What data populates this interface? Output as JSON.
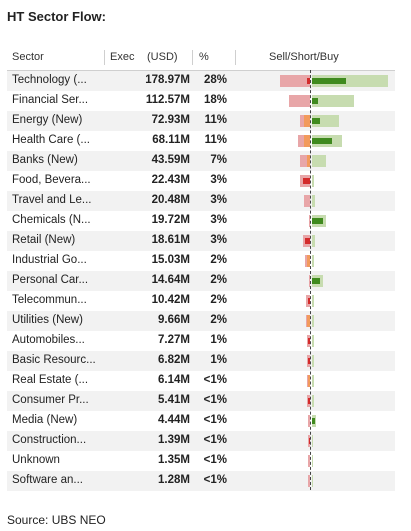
{
  "title": "HT Sector Flow:",
  "source": "Source: UBS NEO",
  "headers": {
    "sector": "Sector",
    "exec": "Exec",
    "usd": "(USD)",
    "pct": "%",
    "chart": "Sell/Short/Buy"
  },
  "colors": {
    "sell": "#e8a6a8",
    "sell_dark": "#d32b2b",
    "short": "#f29a5c",
    "buy": "#c7dcb0",
    "buy_dark": "#3f8a1e"
  },
  "rows": [
    {
      "sector": "Technology (...",
      "exec": "178.97M",
      "pct": "28%",
      "sell": 0.58,
      "sell_dark": 0.06,
      "short": 0.0,
      "buy": 1.0,
      "buy_dark": 0.45
    },
    {
      "sector": "Financial Ser...",
      "exec": "112.57M",
      "pct": "18%",
      "sell": 0.4,
      "sell_dark": 0.0,
      "short": 0.0,
      "buy": 0.55,
      "buy_dark": 0.08
    },
    {
      "sector": "Energy (New)",
      "exec": "72.93M",
      "pct": "11%",
      "sell": 0.2,
      "sell_dark": 0.0,
      "short": 0.12,
      "buy": 0.36,
      "buy_dark": 0.1
    },
    {
      "sector": "Health Care (...",
      "exec": "68.11M",
      "pct": "11%",
      "sell": 0.23,
      "sell_dark": 0.0,
      "short": 0.12,
      "buy": 0.4,
      "buy_dark": 0.26
    },
    {
      "sector": "Banks (New)",
      "exec": "43.59M",
      "pct": "7%",
      "sell": 0.2,
      "sell_dark": 0.0,
      "short": 0.06,
      "buy": 0.18,
      "buy_dark": 0.0
    },
    {
      "sector": "Food, Bevera...",
      "exec": "22.43M",
      "pct": "3%",
      "sell": 0.2,
      "sell_dark": 0.14,
      "short": 0.0,
      "buy": 0.03,
      "buy_dark": 0.0
    },
    {
      "sector": "Travel and Le...",
      "exec": "20.48M",
      "pct": "3%",
      "sell": 0.12,
      "sell_dark": 0.0,
      "short": 0.0,
      "buy": 0.04,
      "buy_dark": 0.0
    },
    {
      "sector": "Chemicals (N...",
      "exec": "19.72M",
      "pct": "3%",
      "sell": 0.02,
      "sell_dark": 0.0,
      "short": 0.0,
      "buy": 0.18,
      "buy_dark": 0.14
    },
    {
      "sector": "Retail (New)",
      "exec": "18.61M",
      "pct": "3%",
      "sell": 0.13,
      "sell_dark": 0.09,
      "short": 0.0,
      "buy": 0.04,
      "buy_dark": 0.0
    },
    {
      "sector": "Industrial Go...",
      "exec": "15.03M",
      "pct": "2%",
      "sell": 0.1,
      "sell_dark": 0.0,
      "short": 0.05,
      "buy": 0.03,
      "buy_dark": 0.0
    },
    {
      "sector": "Personal Car...",
      "exec": "14.64M",
      "pct": "2%",
      "sell": 0.02,
      "sell_dark": 0.0,
      "short": 0.0,
      "buy": 0.14,
      "buy_dark": 0.11
    },
    {
      "sector": "Telecommun...",
      "exec": "10.42M",
      "pct": "2%",
      "sell": 0.07,
      "sell_dark": 0.03,
      "short": 0.0,
      "buy": 0.02,
      "buy_dark": 0.0
    },
    {
      "sector": "Utilities (New)",
      "exec": "9.66M",
      "pct": "2%",
      "sell": 0.08,
      "sell_dark": 0.0,
      "short": 0.05,
      "buy": 0.03,
      "buy_dark": 0.0
    },
    {
      "sector": "Automobiles...",
      "exec": "7.27M",
      "pct": "1%",
      "sell": 0.06,
      "sell_dark": 0.03,
      "short": 0.0,
      "buy": 0.02,
      "buy_dark": 0.0
    },
    {
      "sector": "Basic Resourc...",
      "exec": "6.82M",
      "pct": "1%",
      "sell": 0.06,
      "sell_dark": 0.03,
      "short": 0.0,
      "buy": 0.02,
      "buy_dark": 0.0
    },
    {
      "sector": "Real Estate (...",
      "exec": "6.14M",
      "pct": "<1%",
      "sell": 0.06,
      "sell_dark": 0.0,
      "short": 0.04,
      "buy": 0.02,
      "buy_dark": 0.0
    },
    {
      "sector": "Consumer Pr...",
      "exec": "5.41M",
      "pct": "<1%",
      "sell": 0.06,
      "sell_dark": 0.03,
      "short": 0.0,
      "buy": 0.02,
      "buy_dark": 0.0
    },
    {
      "sector": "Media (New)",
      "exec": "4.44M",
      "pct": "<1%",
      "sell": 0.03,
      "sell_dark": 0.0,
      "short": 0.0,
      "buy": 0.05,
      "buy_dark": 0.04
    },
    {
      "sector": "Construction...",
      "exec": "1.39M",
      "pct": "<1%",
      "sell": 0.04,
      "sell_dark": 0.02,
      "short": 0.0,
      "buy": 0.01,
      "buy_dark": 0.0
    },
    {
      "sector": "Unknown",
      "exec": "1.35M",
      "pct": "<1%",
      "sell": 0.04,
      "sell_dark": 0.0,
      "short": 0.0,
      "buy": 0.01,
      "buy_dark": 0.0
    },
    {
      "sector": "Software an...",
      "exec": "1.28M",
      "pct": "<1%",
      "sell": 0.04,
      "sell_dark": 0.0,
      "short": 0.0,
      "buy": 0.01,
      "buy_dark": 0.0
    }
  ]
}
